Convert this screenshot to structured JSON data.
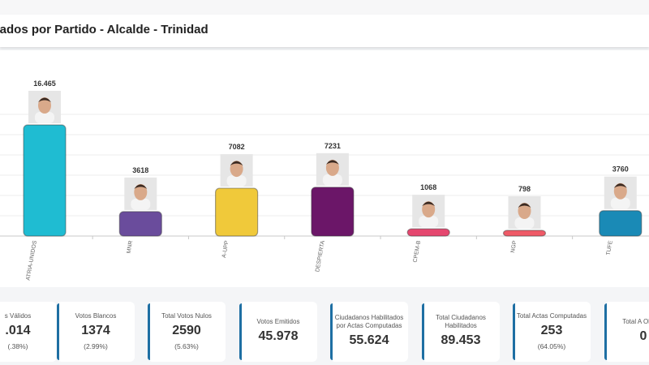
{
  "header": {
    "title": "sultados por Partido - Alcalde - Trinidad"
  },
  "chart_data": {
    "type": "bar",
    "title": "Resultados por Partido - Alcalde - Trinidad",
    "xlabel": "",
    "ylabel": "",
    "ylim": [
      0,
      18000
    ],
    "grid": true,
    "categories": [
      "ATRIA-UNIDOS",
      "MNR",
      "A-UPP",
      "DESPIERTA",
      "CPEM-B",
      "NGP",
      "TUFE"
    ],
    "values": [
      16465,
      3618,
      7082,
      7231,
      1068,
      798,
      3760
    ],
    "data_labels": [
      "16.465",
      "3618",
      "7082",
      "7231",
      "1068",
      "798",
      "3760"
    ],
    "colors": [
      "#1fbcd2",
      "#6a4c9c",
      "#f0c93a",
      "#6b1668",
      "#e5476f",
      "#ef5a67",
      "#1a8ab6"
    ],
    "candidate_photos": [
      "candidate-photo",
      "candidate-photo",
      "candidate-photo",
      "candidate-photo",
      "candidate-photo",
      "candidate-photo",
      "candidate-photo"
    ]
  },
  "cards": [
    {
      "label": "s Válidos",
      "value": ".014",
      "pct": "(.38%)"
    },
    {
      "label": "Votos Blancos",
      "value": "1374",
      "pct": "(2.99%)"
    },
    {
      "label": "Total Votos Nulos",
      "value": "2590",
      "pct": "(5.63%)"
    },
    {
      "label": "Votos Emitidos",
      "value": "45.978",
      "pct": ""
    },
    {
      "label": "Ciudadanos Habilitados por Actas Computadas",
      "value": "55.624",
      "pct": ""
    },
    {
      "label": "Total Ciudadanos Habilitados",
      "value": "89.453",
      "pct": ""
    },
    {
      "label": "Total Actas Computadas",
      "value": "253",
      "pct": "(64.05%)"
    },
    {
      "label": "Total A Observ",
      "value": "0",
      "pct": ""
    }
  ]
}
